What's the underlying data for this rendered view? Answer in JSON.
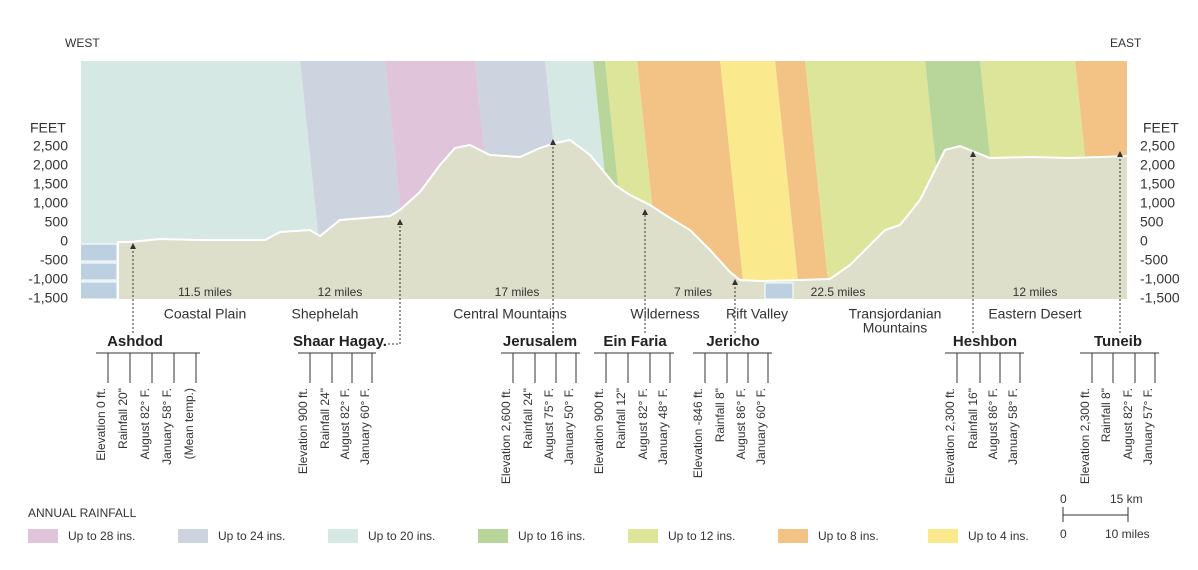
{
  "header": {
    "west": "WEST",
    "east": "EAST"
  },
  "axis": {
    "title": "FEET",
    "ticks": [
      "2,500",
      "2,000",
      "1,500",
      "1,000",
      "500",
      "0",
      "-500",
      "-1,000",
      "-1,500"
    ]
  },
  "distances": [
    "11.5 miles",
    "12 miles",
    "17 miles",
    "7 miles",
    "22.5 miles",
    "12 miles"
  ],
  "regions": [
    "Coastal Plain",
    "Shephelah",
    "Central Mountains",
    "Wilderness",
    "Rift Valley",
    [
      "Transjordanian",
      "Mountains"
    ],
    "Eastern Desert"
  ],
  "places": [
    {
      "name": "Ashdod",
      "details": [
        "Elevation 0 ft.",
        "Rainfall 20\"",
        "August 82° F.",
        "January 58° F.",
        "(Mean temp.)"
      ]
    },
    {
      "name": "Shaar Hagay.",
      "details": [
        "Elevation 900 ft.",
        "Rainfall 24\"",
        "August 82° F.",
        "January 60° F."
      ]
    },
    {
      "name": "Jerusalem",
      "details": [
        "Elevation 2,600 ft.",
        "Rainfall 24\"",
        "August 75° F.",
        "January 50° F."
      ]
    },
    {
      "name": "Ein Faria",
      "details": [
        "Elevation 900 ft.",
        "Rainfall 12\"",
        "August 82° F.",
        "January 48° F."
      ]
    },
    {
      "name": "Jericho",
      "details": [
        "Elevation -846 ft.",
        "Rainfall 8\"",
        "August 86° F.",
        "January 60° F."
      ]
    },
    {
      "name": "Heshbon",
      "details": [
        "Elevation 2,300 ft.",
        "Rainfall 16\"",
        "August 86° F.",
        "January 58° F."
      ]
    },
    {
      "name": "Tuneib",
      "details": [
        "Elevation 2,300 ft.",
        "Rainfall 8\"",
        "August 82° F.",
        "January 57° F."
      ]
    }
  ],
  "legend": {
    "title": "ANNUAL RAINFALL",
    "items": [
      "Up to 28 ins.",
      "Up to 24 ins.",
      "Up to 20 ins.",
      "Up to 16 ins.",
      "Up to 12 ins.",
      "Up to 8 ins.",
      "Up to 4 ins."
    ]
  },
  "scale": {
    "km_zero": "0",
    "km": "15 km",
    "mi_zero": "0",
    "miles": "10 miles"
  }
}
